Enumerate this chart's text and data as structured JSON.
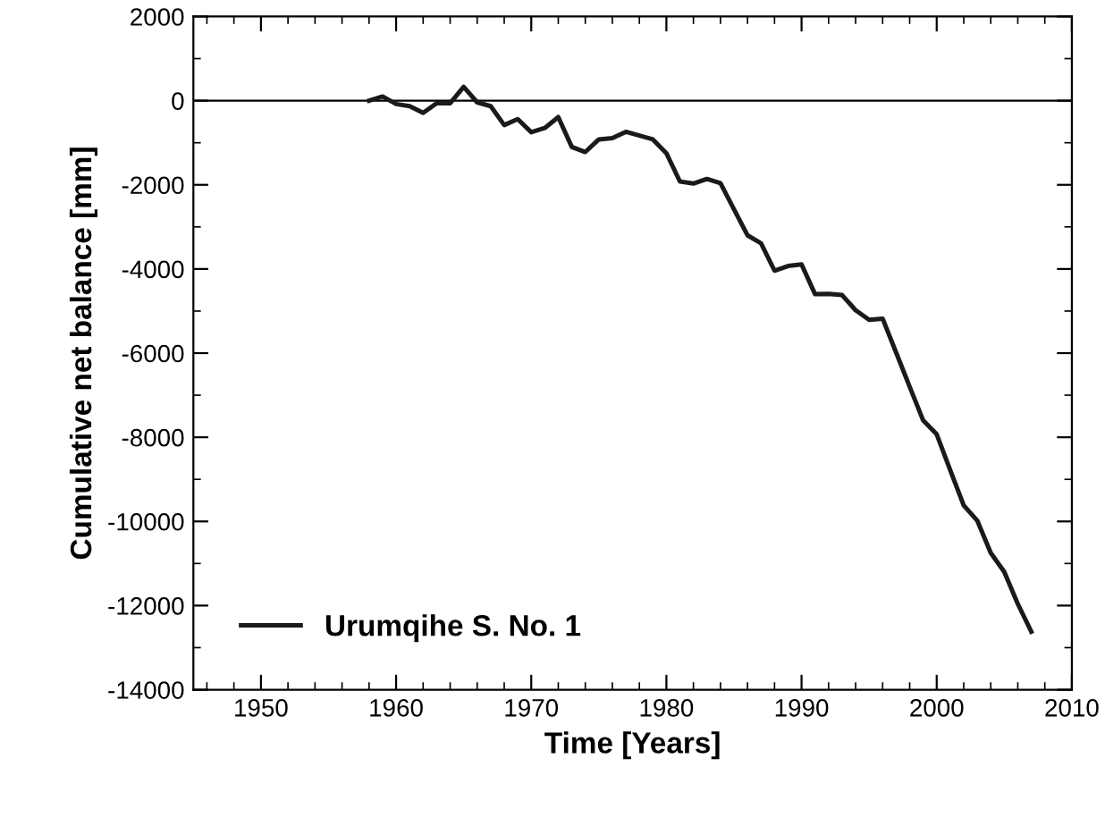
{
  "chart_data": {
    "type": "line",
    "xlabel": "Time [Years]",
    "ylabel": "Cumulative net balance [mm]",
    "x": [
      1958,
      1959,
      1960,
      1961,
      1962,
      1963,
      1964,
      1965,
      1966,
      1967,
      1968,
      1969,
      1970,
      1971,
      1972,
      1973,
      1974,
      1975,
      1976,
      1977,
      1978,
      1979,
      1980,
      1981,
      1982,
      1983,
      1984,
      1985,
      1986,
      1987,
      1988,
      1989,
      1990,
      1991,
      1992,
      1993,
      1994,
      1995,
      1996,
      1997,
      1998,
      1999,
      2000,
      2001,
      2002,
      2003,
      2004,
      2005,
      2006,
      2007
    ],
    "series": [
      {
        "name": "Urumqihe S. No. 1",
        "color": "#1a1a1a",
        "values": [
          0,
          100,
          -80,
          -130,
          -290,
          -60,
          -60,
          330,
          -40,
          -130,
          -580,
          -440,
          -750,
          -650,
          -390,
          -1100,
          -1220,
          -920,
          -890,
          -740,
          -830,
          -920,
          -1250,
          -1920,
          -1970,
          -1860,
          -1960,
          -2580,
          -3200,
          -3390,
          -4040,
          -3930,
          -3890,
          -4600,
          -4590,
          -4620,
          -4980,
          -5210,
          -5180,
          -5990,
          -6800,
          -7600,
          -7930,
          -8780,
          -9620,
          -9980,
          -10750,
          -11200,
          -11960,
          -12620
        ]
      }
    ],
    "xlim": [
      1945,
      2010
    ],
    "xticks": [
      1950,
      1960,
      1970,
      1980,
      1990,
      2000,
      2010
    ],
    "ylim": [
      -14000,
      2000
    ],
    "yticks": [
      -14000,
      -12000,
      -10000,
      -8000,
      -6000,
      -4000,
      -2000,
      0,
      2000
    ],
    "ref_lines": [
      {
        "axis": "y",
        "value": 0,
        "color": "#000000"
      }
    ],
    "grid": false,
    "legend": "bottom left",
    "marker": "none",
    "line_style": "solid"
  }
}
